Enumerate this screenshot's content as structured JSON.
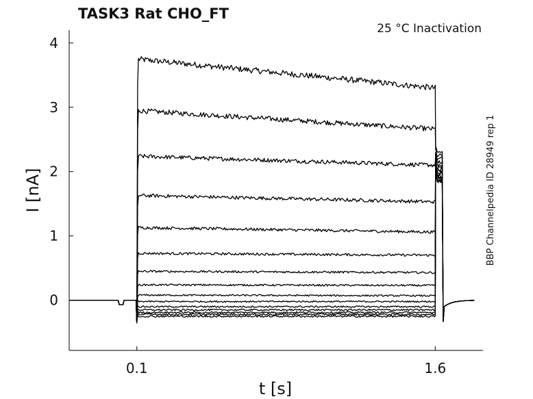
{
  "title": "TASK3  Rat  CHO_FT",
  "subtitle": "25 °C  Inactivation",
  "side_label": "BBP Channelpedia ID 28949 rep 1",
  "chart_data": {
    "type": "line",
    "title": "TASK3  Rat  CHO_FT",
    "xlabel": "t [s]",
    "ylabel": "I [nA]",
    "xlim": [
      -0.24,
      1.84
    ],
    "ylim": [
      -0.78,
      4.2
    ],
    "xticks": [
      0.1,
      1.6
    ],
    "xtick_labels": [
      "0.1",
      "1.6"
    ],
    "yticks": [
      0,
      1,
      2,
      3,
      4
    ],
    "ytick_labels": [
      "0",
      "1",
      "2",
      "3",
      "4"
    ],
    "grid": false,
    "legend": "none",
    "line_color": "#000000",
    "step_start": 0.1,
    "step_end": 1.6,
    "trace_end": 1.8,
    "series": [
      {
        "plateau_start": 3.75,
        "plateau_end": 3.3,
        "tail": 2.3
      },
      {
        "plateau_start": 2.95,
        "plateau_end": 2.66,
        "tail": 2.25
      },
      {
        "plateau_start": 2.24,
        "plateau_end": 2.1,
        "tail": 2.2
      },
      {
        "plateau_start": 1.63,
        "plateau_end": 1.53,
        "tail": 2.15
      },
      {
        "plateau_start": 1.13,
        "plateau_end": 1.06,
        "tail": 2.1
      },
      {
        "plateau_start": 0.73,
        "plateau_end": 0.7,
        "tail": 2.06
      },
      {
        "plateau_start": 0.45,
        "plateau_end": 0.43,
        "tail": 2.03
      },
      {
        "plateau_start": 0.24,
        "plateau_end": 0.23,
        "tail": 2.0
      },
      {
        "plateau_start": 0.08,
        "plateau_end": 0.07,
        "tail": 1.97
      },
      {
        "plateau_start": -0.02,
        "plateau_end": -0.02,
        "tail": 1.94
      },
      {
        "plateau_start": -0.1,
        "plateau_end": -0.1,
        "tail": 1.92
      },
      {
        "plateau_start": -0.15,
        "plateau_end": -0.15,
        "tail": 1.9
      },
      {
        "plateau_start": -0.19,
        "plateau_end": -0.19,
        "tail": 1.88
      },
      {
        "plateau_start": -0.22,
        "plateau_end": -0.22,
        "tail": 1.86
      },
      {
        "plateau_start": -0.25,
        "plateau_end": -0.25,
        "tail": 1.85
      }
    ]
  }
}
